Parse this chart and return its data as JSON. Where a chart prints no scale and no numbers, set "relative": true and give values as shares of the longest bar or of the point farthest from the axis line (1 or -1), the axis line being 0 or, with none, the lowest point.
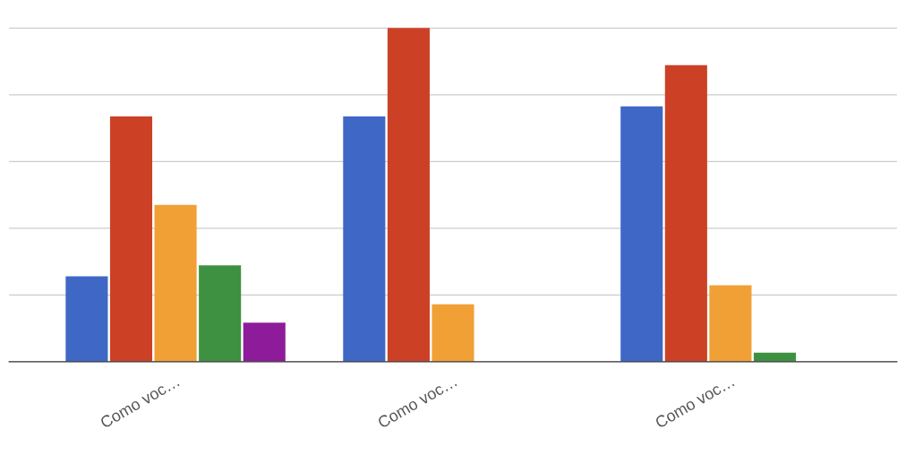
{
  "chart_data": {
    "type": "bar",
    "relative": true,
    "categories": [
      "Como voc…",
      "Como voc…",
      "Como voc…"
    ],
    "series": [
      {
        "color": "#3f67c6",
        "values": [
          0.256,
          0.735,
          0.765
        ]
      },
      {
        "color": "#cc4125",
        "values": [
          0.735,
          1.0,
          0.889
        ]
      },
      {
        "color": "#f0a035",
        "values": [
          0.47,
          0.172,
          0.229
        ]
      },
      {
        "color": "#3e9141",
        "values": [
          0.289,
          0,
          0.027
        ]
      },
      {
        "color": "#8e1c9a",
        "values": [
          0.117,
          0,
          0
        ]
      }
    ],
    "grid": "y",
    "legend": false
  }
}
